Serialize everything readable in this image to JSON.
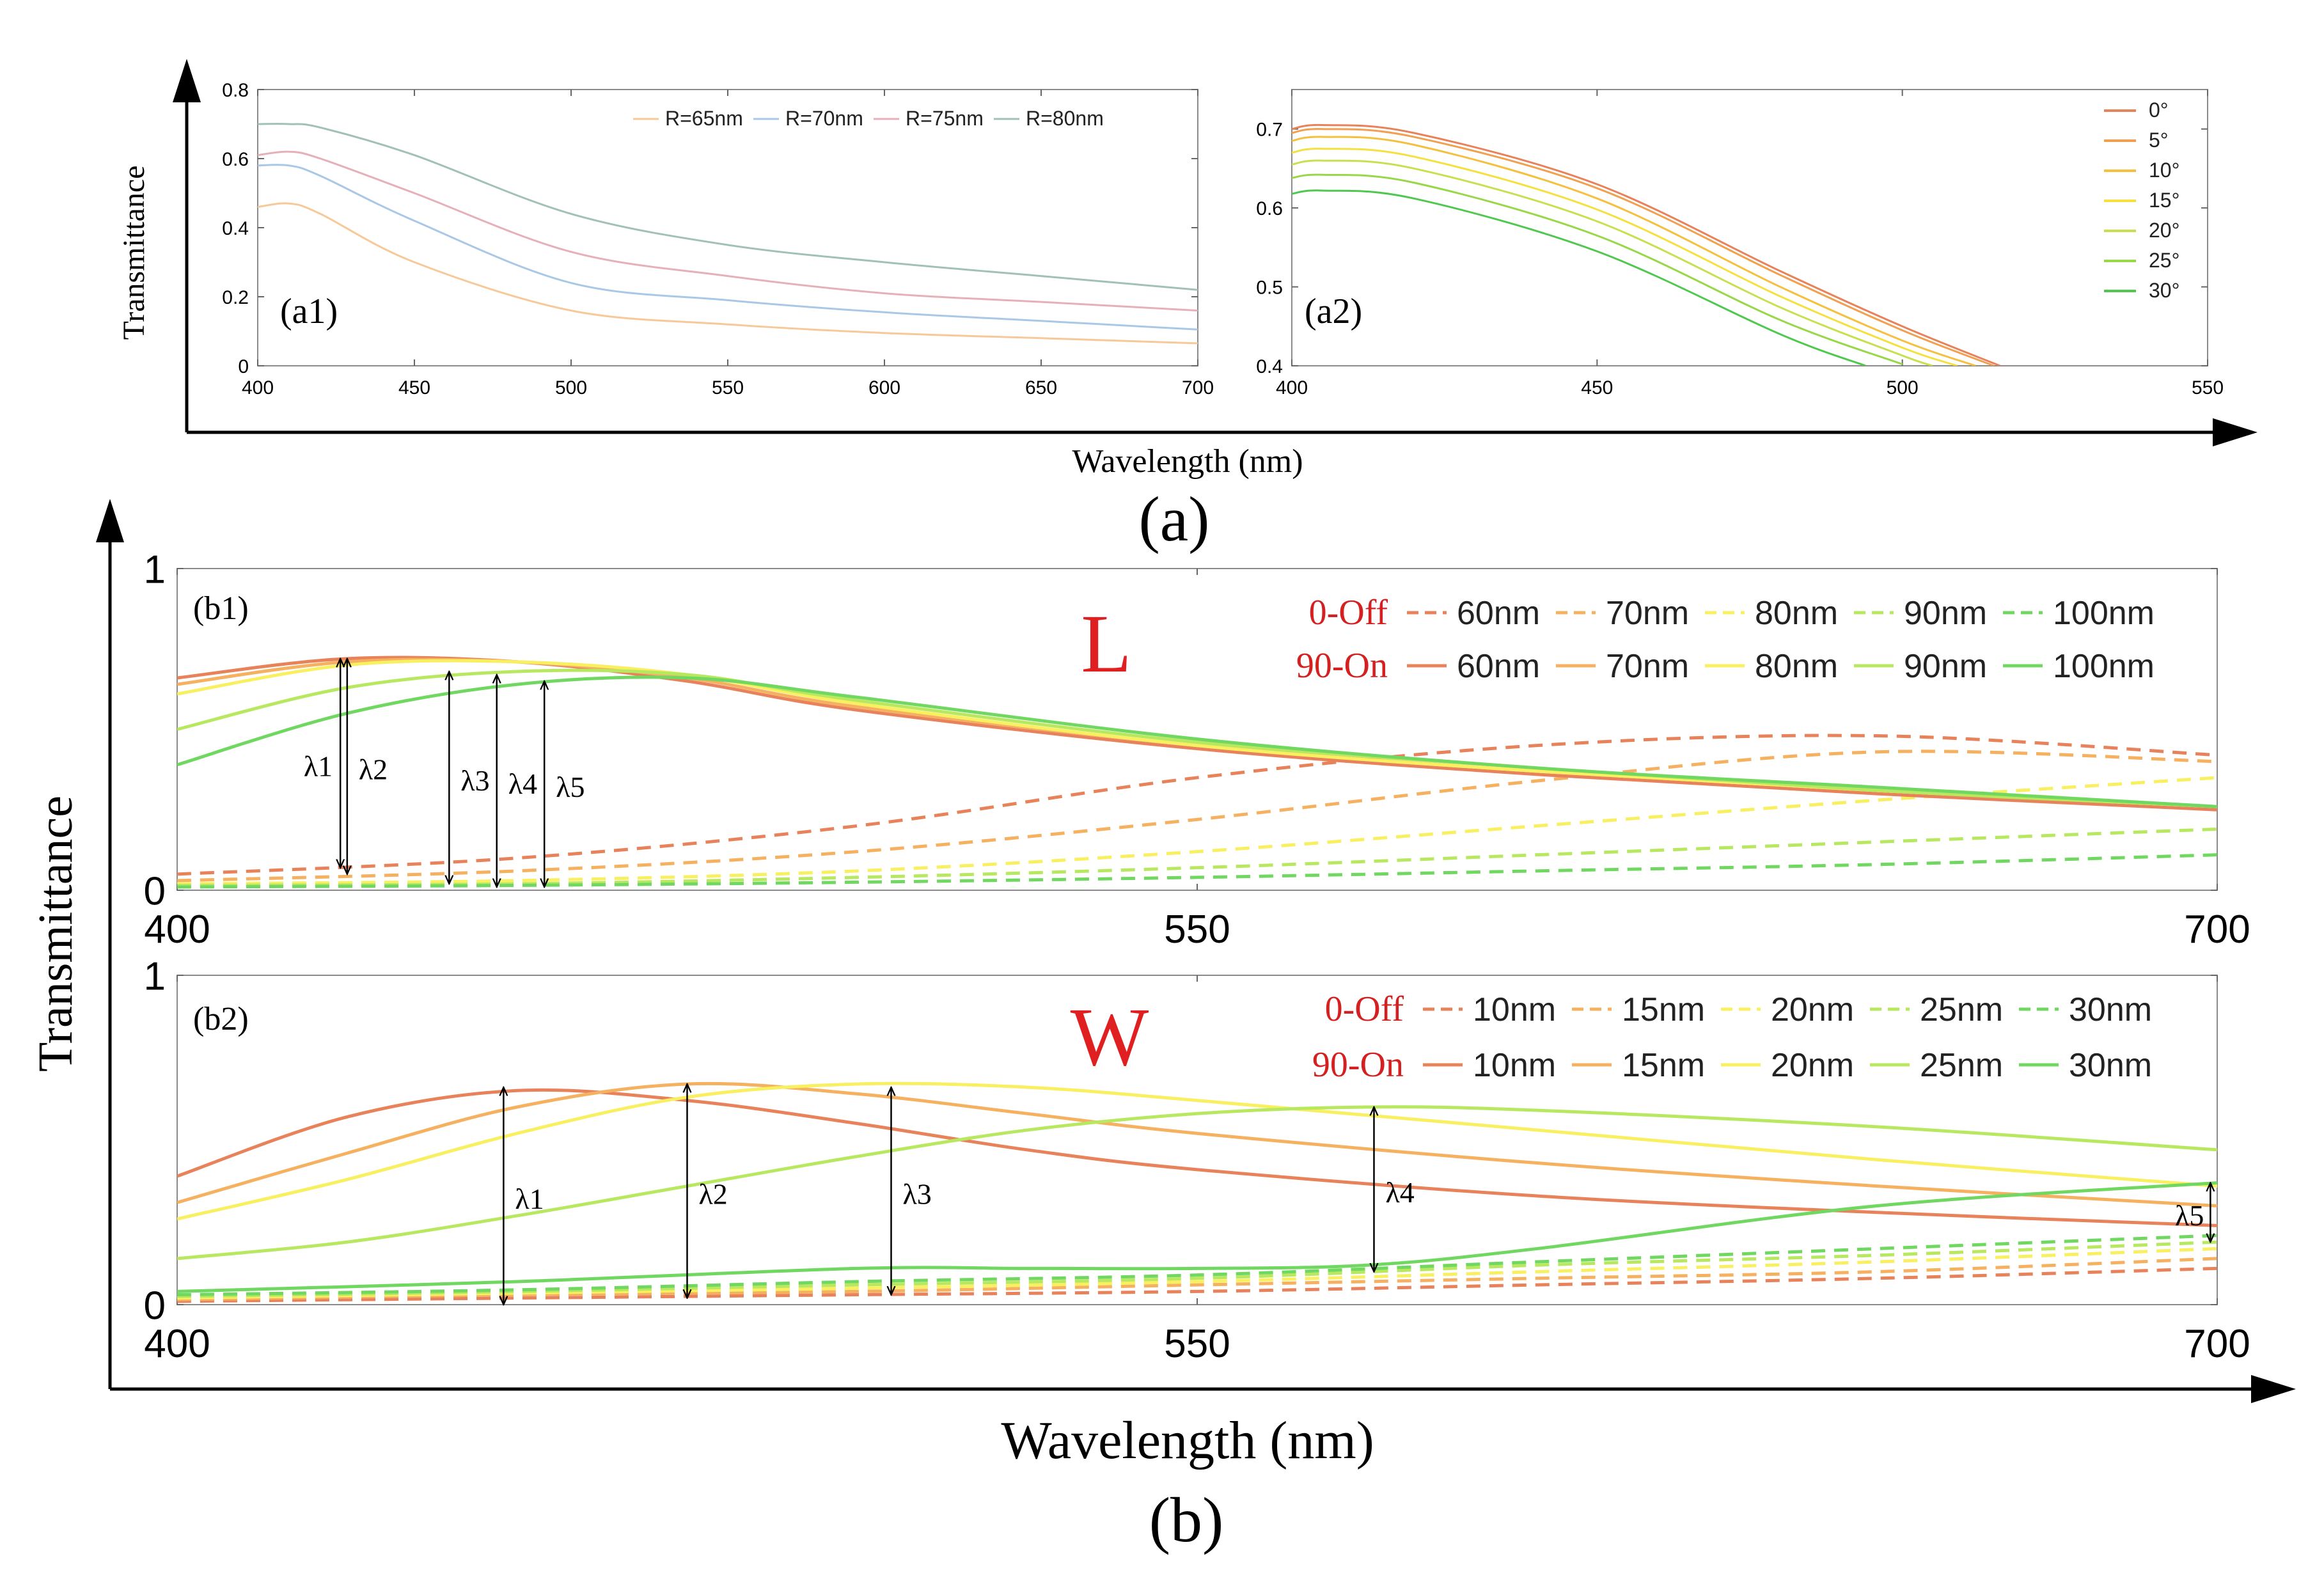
{
  "figure": {
    "outer_a": {
      "xlabel": "Wavelength (nm)",
      "ylabel": "Transmittance",
      "caption": "(a)"
    },
    "outer_b": {
      "xlabel": "Wavelength (nm)",
      "ylabel": "Transmittance",
      "caption": "(b)"
    }
  },
  "chart_data": [
    {
      "id": "a1",
      "type": "line",
      "panel_label": "(a1)",
      "xlim": [
        400,
        700
      ],
      "ylim": [
        0,
        0.8
      ],
      "xticks": [
        400,
        450,
        500,
        550,
        600,
        650,
        700
      ],
      "yticks": [
        0,
        0.2,
        0.4,
        0.6,
        0.8
      ],
      "ytick_labels": [
        "0",
        "0.2",
        "0.4",
        "0.6",
        "0.8"
      ],
      "legend_position": "top-right",
      "series": [
        {
          "name": "R=65nm",
          "color": "#f7c99a",
          "x": [
            400,
            410,
            420,
            450,
            500,
            550,
            600,
            650,
            700
          ],
          "y": [
            0.46,
            0.47,
            0.44,
            0.3,
            0.16,
            0.12,
            0.095,
            0.08,
            0.065
          ]
        },
        {
          "name": "R=70nm",
          "color": "#a9c8e6",
          "x": [
            400,
            410,
            420,
            450,
            500,
            550,
            600,
            650,
            700
          ],
          "y": [
            0.58,
            0.58,
            0.55,
            0.42,
            0.24,
            0.19,
            0.155,
            0.13,
            0.105
          ]
        },
        {
          "name": "R=75nm",
          "color": "#e6b0b8",
          "x": [
            400,
            410,
            420,
            450,
            500,
            550,
            600,
            650,
            700
          ],
          "y": [
            0.61,
            0.62,
            0.6,
            0.5,
            0.33,
            0.26,
            0.21,
            0.185,
            0.16
          ]
        },
        {
          "name": "R=80nm",
          "color": "#a0c0b8",
          "x": [
            400,
            410,
            420,
            450,
            500,
            550,
            600,
            650,
            700
          ],
          "y": [
            0.7,
            0.7,
            0.69,
            0.61,
            0.44,
            0.35,
            0.3,
            0.26,
            0.22
          ]
        }
      ]
    },
    {
      "id": "a2",
      "type": "line",
      "panel_label": "(a2)",
      "xlim": [
        400,
        550
      ],
      "ylim": [
        0.4,
        0.75
      ],
      "xticks": [
        400,
        450,
        500,
        550
      ],
      "yticks": [
        0.4,
        0.5,
        0.6,
        0.7
      ],
      "ytick_labels": [
        "0.4",
        "0.5",
        "0.6",
        "0.7"
      ],
      "legend_position": "top-right",
      "series": [
        {
          "name": "0°",
          "color": "#e8825a",
          "x": [
            400,
            405,
            420,
            450,
            480,
            500,
            516
          ],
          "y": [
            0.7,
            0.705,
            0.695,
            0.63,
            0.52,
            0.45,
            0.4
          ]
        },
        {
          "name": "5°",
          "color": "#f0a050",
          "x": [
            400,
            405,
            420,
            450,
            480,
            500,
            515
          ],
          "y": [
            0.695,
            0.7,
            0.69,
            0.625,
            0.515,
            0.445,
            0.4
          ]
        },
        {
          "name": "10°",
          "color": "#f5c040",
          "x": [
            400,
            405,
            420,
            450,
            480,
            500,
            512
          ],
          "y": [
            0.685,
            0.69,
            0.68,
            0.612,
            0.5,
            0.432,
            0.4
          ]
        },
        {
          "name": "15°",
          "color": "#f5e040",
          "x": [
            400,
            405,
            420,
            450,
            480,
            500,
            509
          ],
          "y": [
            0.67,
            0.675,
            0.665,
            0.598,
            0.488,
            0.423,
            0.4
          ]
        },
        {
          "name": "20°",
          "color": "#c8e050",
          "x": [
            400,
            405,
            420,
            450,
            480,
            500,
            505
          ],
          "y": [
            0.655,
            0.66,
            0.65,
            0.583,
            0.474,
            0.413,
            0.4
          ]
        },
        {
          "name": "25°",
          "color": "#98d848",
          "x": [
            400,
            405,
            420,
            450,
            480,
            500
          ],
          "y": [
            0.638,
            0.642,
            0.632,
            0.565,
            0.458,
            0.402
          ]
        },
        {
          "name": "30°",
          "color": "#50c850",
          "x": [
            400,
            405,
            420,
            450,
            480,
            494
          ],
          "y": [
            0.618,
            0.622,
            0.612,
            0.545,
            0.44,
            0.4
          ]
        }
      ]
    },
    {
      "id": "b1",
      "type": "line",
      "panel_label": "(b1)",
      "big_letter": "L",
      "xlim": [
        400,
        700
      ],
      "ylim": [
        0,
        1
      ],
      "xticks": [
        400,
        550,
        700
      ],
      "yticks": [
        0,
        1
      ],
      "ytick_labels": [
        "0",
        "1"
      ],
      "legend_position": "top-right",
      "legend_rows": [
        "0-Off",
        "90-On"
      ],
      "colors": [
        "#e8825a",
        "#f5b060",
        "#f8f060",
        "#b8e860",
        "#70d860"
      ],
      "series": [
        {
          "name": "60nm",
          "state": "0-Off",
          "style": "dashed",
          "color": "#e8825a",
          "x": [
            400,
            450,
            500,
            550,
            600,
            650,
            700
          ],
          "y": [
            0.05,
            0.1,
            0.2,
            0.35,
            0.45,
            0.48,
            0.42
          ]
        },
        {
          "name": "70nm",
          "state": "0-Off",
          "style": "dashed",
          "color": "#f5b060",
          "x": [
            400,
            450,
            500,
            550,
            600,
            650,
            700
          ],
          "y": [
            0.03,
            0.06,
            0.12,
            0.22,
            0.34,
            0.43,
            0.4
          ]
        },
        {
          "name": "80nm",
          "state": "0-Off",
          "style": "dashed",
          "color": "#f8f060",
          "x": [
            400,
            450,
            500,
            550,
            600,
            650,
            700
          ],
          "y": [
            0.02,
            0.03,
            0.06,
            0.12,
            0.2,
            0.28,
            0.35
          ]
        },
        {
          "name": "90nm",
          "state": "0-Off",
          "style": "dashed",
          "color": "#b8e860",
          "x": [
            400,
            450,
            500,
            550,
            600,
            650,
            700
          ],
          "y": [
            0.015,
            0.02,
            0.04,
            0.07,
            0.11,
            0.15,
            0.19
          ]
        },
        {
          "name": "100nm",
          "state": "0-Off",
          "style": "dashed",
          "color": "#70d860",
          "x": [
            400,
            450,
            500,
            550,
            600,
            650,
            700
          ],
          "y": [
            0.01,
            0.015,
            0.025,
            0.04,
            0.06,
            0.08,
            0.11
          ]
        },
        {
          "name": "60nm",
          "state": "90-On",
          "style": "solid",
          "color": "#e8825a",
          "x": [
            400,
            425,
            450,
            475,
            500,
            550,
            600,
            650,
            700
          ],
          "y": [
            0.66,
            0.72,
            0.71,
            0.65,
            0.56,
            0.44,
            0.36,
            0.3,
            0.25
          ]
        },
        {
          "name": "70nm",
          "state": "90-On",
          "style": "solid",
          "color": "#f5b060",
          "x": [
            400,
            425,
            450,
            475,
            500,
            550,
            600,
            650,
            700
          ],
          "y": [
            0.64,
            0.71,
            0.71,
            0.66,
            0.57,
            0.45,
            0.37,
            0.31,
            0.26
          ]
        },
        {
          "name": "80nm",
          "state": "90-On",
          "style": "solid",
          "color": "#f8f060",
          "x": [
            400,
            425,
            450,
            475,
            500,
            550,
            600,
            650,
            700
          ],
          "y": [
            0.61,
            0.7,
            0.71,
            0.67,
            0.58,
            0.45,
            0.37,
            0.31,
            0.26
          ]
        },
        {
          "name": "90nm",
          "state": "90-On",
          "style": "solid",
          "color": "#b8e860",
          "x": [
            400,
            425,
            450,
            475,
            500,
            550,
            600,
            650,
            700
          ],
          "y": [
            0.5,
            0.63,
            0.68,
            0.67,
            0.59,
            0.46,
            0.38,
            0.31,
            0.26
          ]
        },
        {
          "name": "100nm",
          "state": "90-On",
          "style": "solid",
          "color": "#70d860",
          "x": [
            400,
            425,
            450,
            475,
            500,
            550,
            600,
            650,
            700
          ],
          "y": [
            0.39,
            0.55,
            0.64,
            0.66,
            0.6,
            0.47,
            0.38,
            0.32,
            0.26
          ]
        }
      ],
      "annotations": [
        {
          "label": "λ1",
          "x": 424,
          "y_top": 0.72,
          "y_bottom": 0.07
        },
        {
          "label": "λ2",
          "x": 425,
          "y_top": 0.72,
          "y_bottom": 0.05
        },
        {
          "label": "λ3",
          "x": 440,
          "y_top": 0.68,
          "y_bottom": 0.02
        },
        {
          "label": "λ4",
          "x": 447,
          "y_top": 0.67,
          "y_bottom": 0.01
        },
        {
          "label": "λ5",
          "x": 454,
          "y_top": 0.65,
          "y_bottom": 0.01
        }
      ]
    },
    {
      "id": "b2",
      "type": "line",
      "panel_label": "(b2)",
      "big_letter": "W",
      "xlim": [
        400,
        700
      ],
      "ylim": [
        0,
        1
      ],
      "xticks": [
        400,
        550,
        700
      ],
      "yticks": [
        0,
        1
      ],
      "ytick_labels": [
        "0",
        "1"
      ],
      "legend_position": "top-right",
      "legend_rows": [
        "0-Off",
        "90-On"
      ],
      "colors": [
        "#e8825a",
        "#f5b060",
        "#f8f060",
        "#b8e860",
        "#70d860"
      ],
      "series": [
        {
          "name": "10nm",
          "state": "0-Off",
          "style": "dashed",
          "color": "#e8825a",
          "x": [
            400,
            450,
            500,
            550,
            600,
            650,
            700
          ],
          "y": [
            0.01,
            0.02,
            0.03,
            0.04,
            0.06,
            0.08,
            0.11
          ]
        },
        {
          "name": "15nm",
          "state": "0-Off",
          "style": "dashed",
          "color": "#f5b060",
          "x": [
            400,
            450,
            500,
            550,
            600,
            650,
            700
          ],
          "y": [
            0.015,
            0.03,
            0.04,
            0.06,
            0.08,
            0.1,
            0.14
          ]
        },
        {
          "name": "20nm",
          "state": "0-Off",
          "style": "dashed",
          "color": "#f8f060",
          "x": [
            400,
            450,
            500,
            550,
            600,
            650,
            700
          ],
          "y": [
            0.02,
            0.035,
            0.05,
            0.07,
            0.1,
            0.13,
            0.17
          ]
        },
        {
          "name": "25nm",
          "state": "0-Off",
          "style": "dashed",
          "color": "#b8e860",
          "x": [
            400,
            450,
            500,
            550,
            600,
            650,
            700
          ],
          "y": [
            0.025,
            0.04,
            0.06,
            0.08,
            0.12,
            0.15,
            0.19
          ]
        },
        {
          "name": "30nm",
          "state": "0-Off",
          "style": "dashed",
          "color": "#70d860",
          "x": [
            400,
            450,
            500,
            550,
            600,
            650,
            700
          ],
          "y": [
            0.03,
            0.045,
            0.07,
            0.09,
            0.13,
            0.17,
            0.21
          ]
        },
        {
          "name": "10nm",
          "state": "90-On",
          "style": "solid",
          "color": "#e8825a",
          "x": [
            400,
            425,
            450,
            475,
            500,
            525,
            550,
            600,
            650,
            700
          ],
          "y": [
            0.39,
            0.57,
            0.65,
            0.62,
            0.55,
            0.47,
            0.41,
            0.33,
            0.28,
            0.24
          ]
        },
        {
          "name": "15nm",
          "state": "90-On",
          "style": "solid",
          "color": "#f5b060",
          "x": [
            400,
            425,
            450,
            475,
            500,
            525,
            550,
            600,
            650,
            700
          ],
          "y": [
            0.31,
            0.46,
            0.6,
            0.67,
            0.64,
            0.58,
            0.52,
            0.43,
            0.36,
            0.3
          ]
        },
        {
          "name": "20nm",
          "state": "90-On",
          "style": "solid",
          "color": "#f8f060",
          "x": [
            400,
            425,
            450,
            475,
            500,
            525,
            550,
            600,
            650,
            700
          ],
          "y": [
            0.26,
            0.38,
            0.52,
            0.63,
            0.67,
            0.66,
            0.62,
            0.53,
            0.44,
            0.36
          ]
        },
        {
          "name": "25nm",
          "state": "90-On",
          "style": "solid",
          "color": "#b8e860",
          "x": [
            400,
            425,
            450,
            475,
            500,
            525,
            550,
            575,
            600,
            650,
            700
          ],
          "y": [
            0.14,
            0.19,
            0.27,
            0.36,
            0.45,
            0.53,
            0.58,
            0.6,
            0.59,
            0.54,
            0.47
          ]
        },
        {
          "name": "30nm",
          "state": "90-On",
          "style": "solid",
          "color": "#70d860",
          "x": [
            400,
            450,
            500,
            525,
            550,
            575,
            600,
            650,
            700
          ],
          "y": [
            0.04,
            0.07,
            0.11,
            0.11,
            0.11,
            0.12,
            0.17,
            0.3,
            0.37
          ]
        }
      ],
      "annotations": [
        {
          "label": "λ1",
          "x": 448,
          "y_top": 0.66,
          "y_bottom": 0.0
        },
        {
          "label": "λ2",
          "x": 475,
          "y_top": 0.67,
          "y_bottom": 0.02
        },
        {
          "label": "λ3",
          "x": 505,
          "y_top": 0.66,
          "y_bottom": 0.03
        },
        {
          "label": "λ4",
          "x": 576,
          "y_top": 0.6,
          "y_bottom": 0.1
        },
        {
          "label": "λ5",
          "x": 699,
          "y_top": 0.37,
          "y_bottom": 0.19
        }
      ]
    }
  ]
}
